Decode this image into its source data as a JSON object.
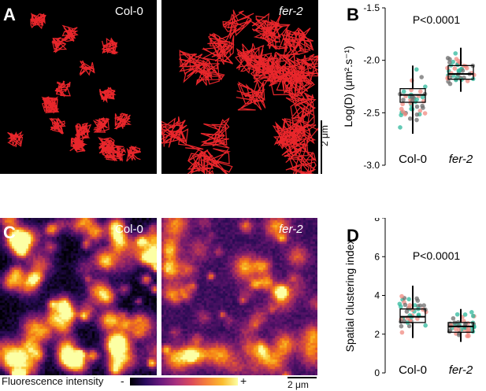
{
  "panels": {
    "A": {
      "letter": "A",
      "label_left": "Col-0",
      "label_right": "fer-2"
    },
    "B": {
      "letter": "B",
      "pvalue": "P<0.0001",
      "ylabel": "Log(D) (μm².s⁻¹)"
    },
    "C": {
      "letter": "C",
      "label_left": "Col-0",
      "label_right": "fer-2"
    },
    "D": {
      "letter": "D",
      "pvalue": "P<0.0001",
      "ylabel": "Spatial clustering index"
    }
  },
  "scalebar_A": "2 μm",
  "scalebar_C": "2 μm",
  "colorbar": {
    "label": "Fluorescence intensity",
    "minus": "-",
    "plus": "+"
  },
  "colors": {
    "track": "#e8262b",
    "teal": "#2fb89c",
    "salmon": "#f08a80",
    "grey": "#6e6e6e",
    "box": "#000000"
  },
  "chart_data": [
    {
      "type": "box",
      "categories": [
        "Col-0",
        "fer-2"
      ],
      "ylim": [
        -3.0,
        -1.5
      ],
      "yticks": [
        "-1.5",
        "-2.0",
        "-2.5",
        "-3.0"
      ],
      "ytick_values": [
        -1.5,
        -2.0,
        -2.5,
        -3.0
      ],
      "ylabel": "Log(D) (μm².s⁻¹)",
      "annotation": "P<0.0001",
      "boxes": [
        {
          "category": "Col-0",
          "q1": -2.4,
          "median": -2.33,
          "q3": -2.27,
          "whisker_low": -2.7,
          "whisker_high": -2.05
        },
        {
          "category": "fer-2",
          "q1": -2.18,
          "median": -2.13,
          "q3": -2.05,
          "whisker_low": -2.3,
          "whisker_high": -1.88
        }
      ]
    },
    {
      "type": "box",
      "categories": [
        "Col-0",
        "fer-2"
      ],
      "ylim": [
        0,
        8
      ],
      "yticks": [
        "8",
        "6",
        "4",
        "2",
        "0"
      ],
      "ytick_values": [
        8,
        6,
        4,
        2,
        0
      ],
      "ylabel": "Spatial clustering index",
      "annotation": "P<0.0001",
      "boxes": [
        {
          "category": "Col-0",
          "q1": 2.6,
          "median": 2.9,
          "q3": 3.3,
          "whisker_low": 1.8,
          "whisker_high": 4.5
        },
        {
          "category": "fer-2",
          "q1": 2.1,
          "median": 2.4,
          "q3": 2.6,
          "whisker_low": 1.6,
          "whisker_high": 3.3
        }
      ]
    }
  ]
}
